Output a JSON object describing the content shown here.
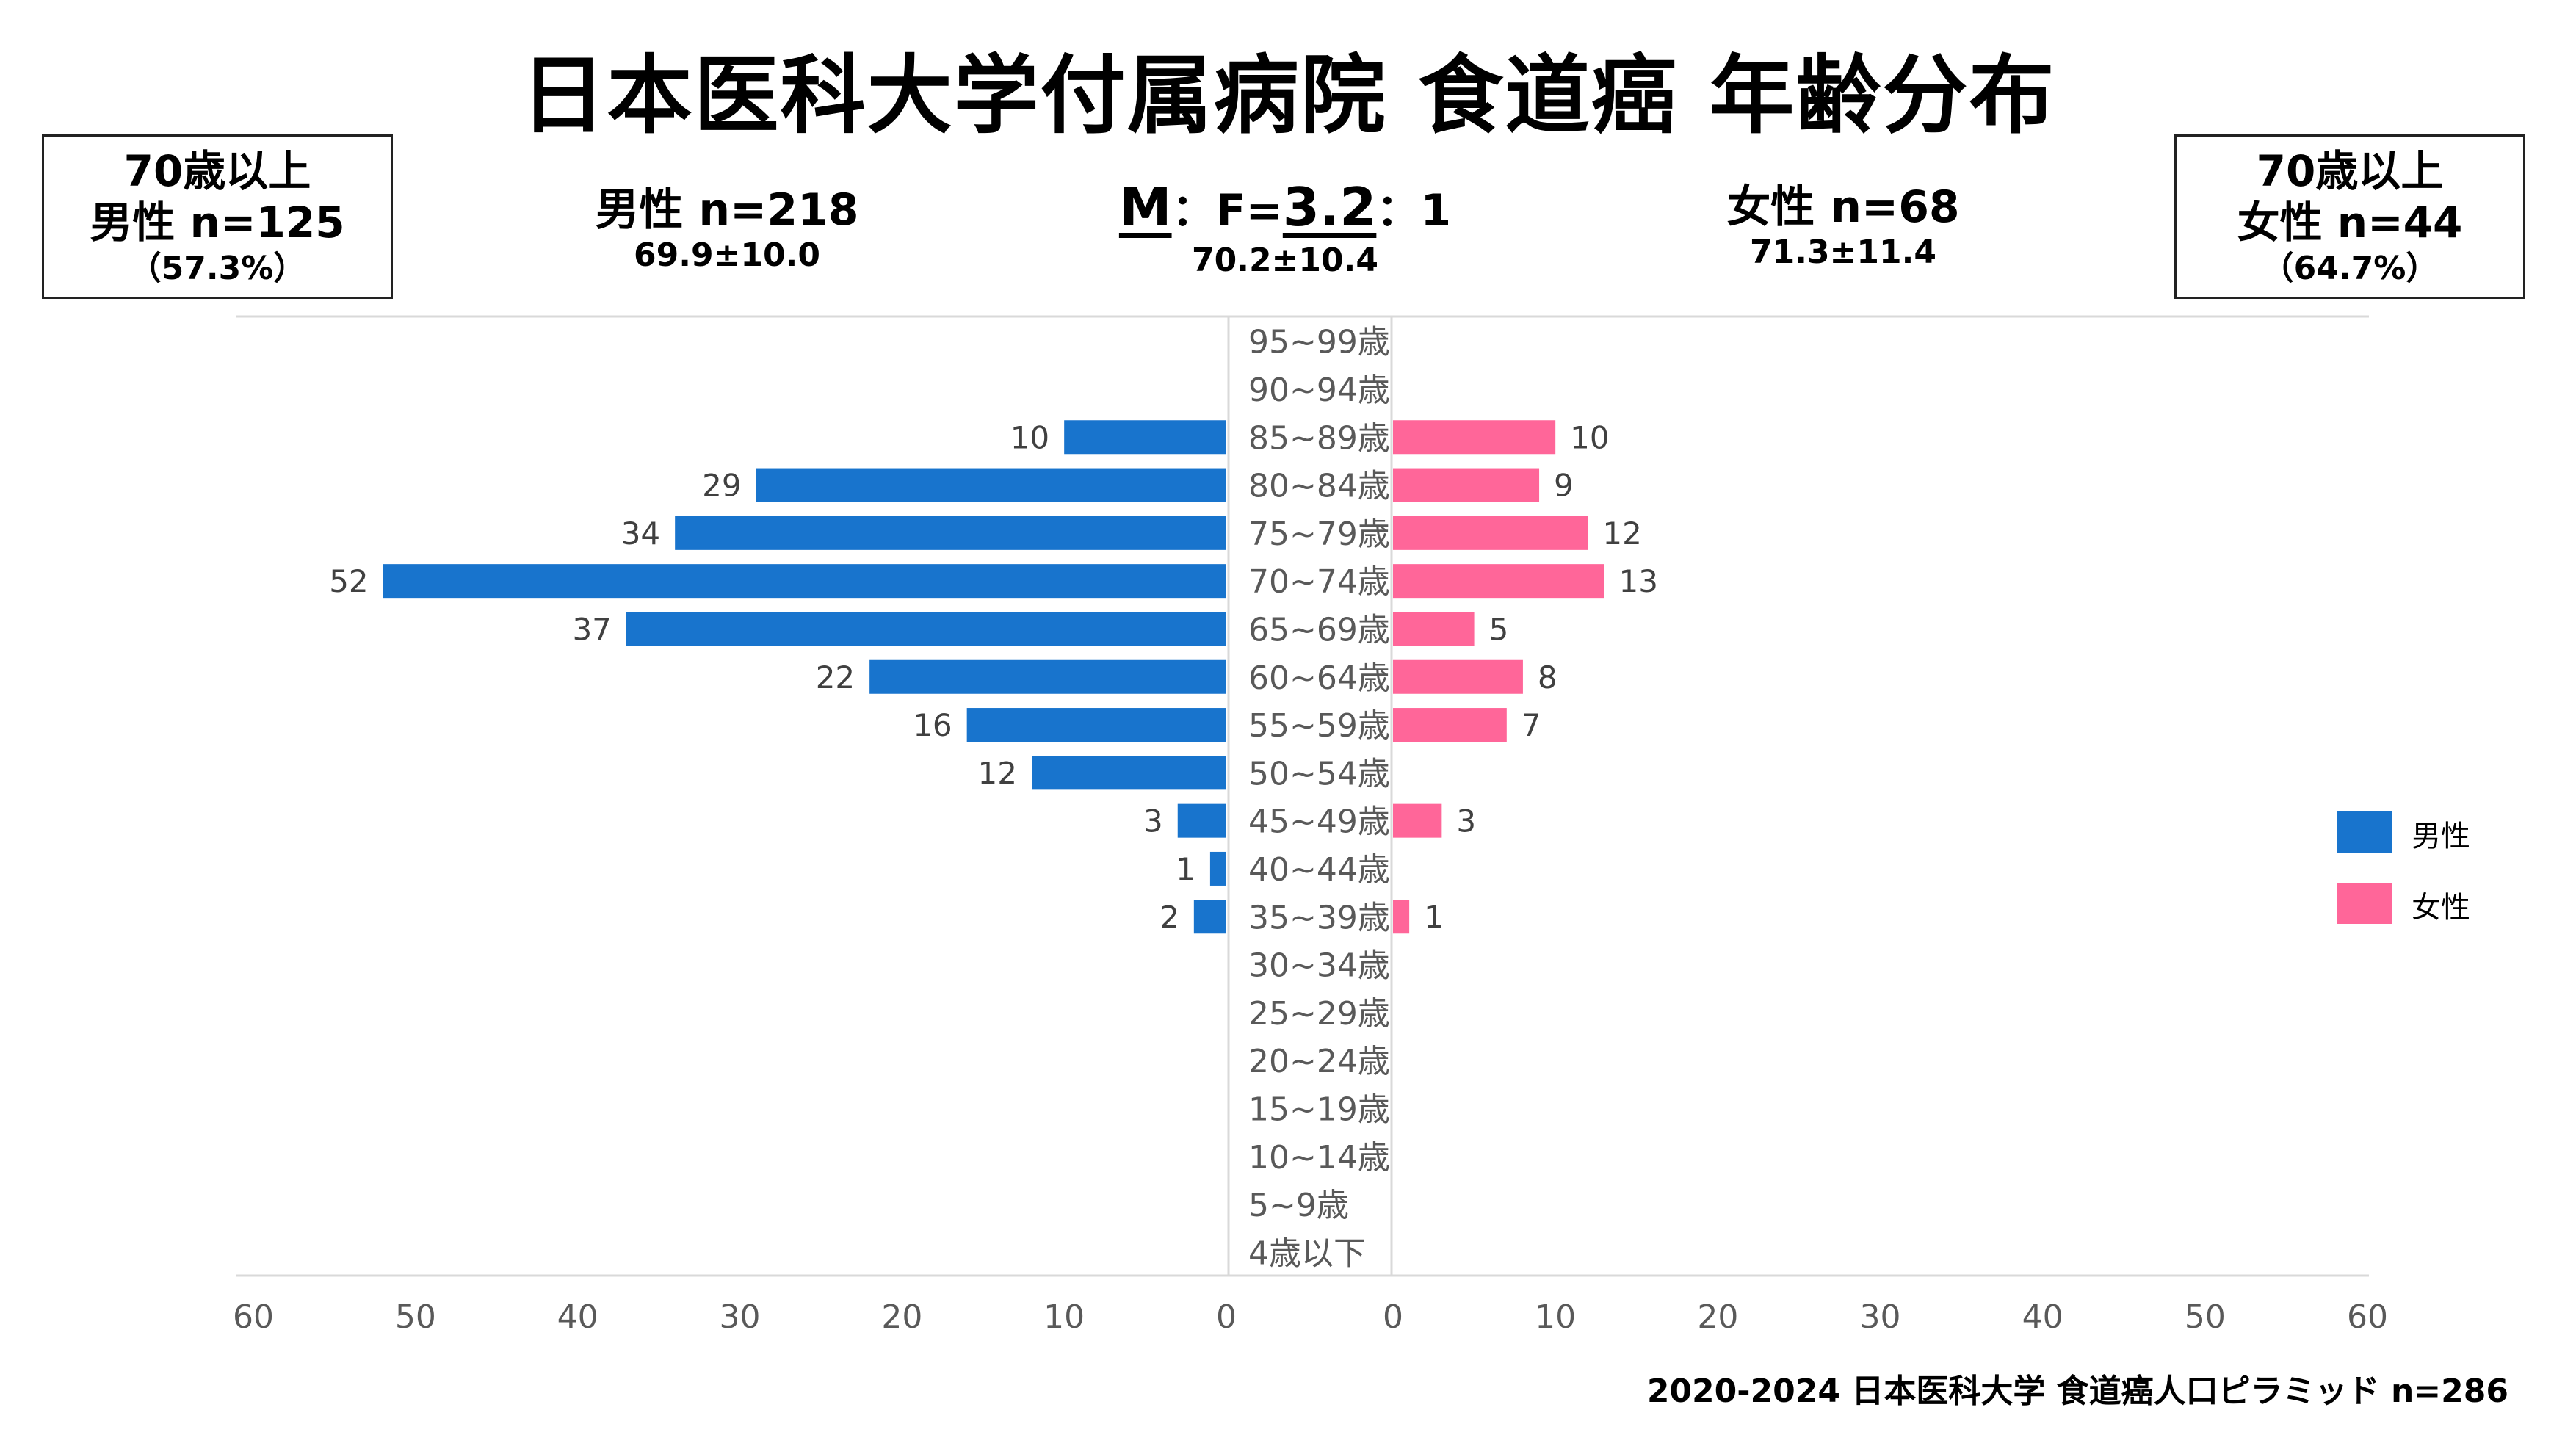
{
  "title": "日本医科大学付属病院 食道癌 年齢分布",
  "box_left": {
    "line1": "70歳以上",
    "line2": "男性 n=125",
    "line3": "（57.3%）"
  },
  "box_right": {
    "line1": "70歳以上",
    "line2": "女性 n=44",
    "line3": "（64.7%）"
  },
  "stat_male": {
    "main": "男性 n=218",
    "sub": "69.9±10.0"
  },
  "stat_ratio": {
    "m": "M",
    "mid": "：F=",
    "value": "3.2",
    "end": "：1",
    "sub": "70.2±10.4"
  },
  "stat_female": {
    "main": "女性 n=68",
    "sub": "71.3±11.4"
  },
  "footer": "2020-2024 日本医科大学 食道癌人口ピラミッド n=286",
  "colors": {
    "male": "#1874CD",
    "female": "#FF6699"
  },
  "chart_data": {
    "type": "bar",
    "orientation": "horizontal-pyramid",
    "categories": [
      "95~99歳",
      "90~94歳",
      "85~89歳",
      "80~84歳",
      "75~79歳",
      "70~74歳",
      "65~69歳",
      "60~64歳",
      "55~59歳",
      "50~54歳",
      "45~49歳",
      "40~44歳",
      "35~39歳",
      "30~34歳",
      "25~29歳",
      "20~24歳",
      "15~19歳",
      "10~14歳",
      "5~9歳",
      "4歳以下"
    ],
    "series": [
      {
        "name": "男性",
        "values": [
          0,
          0,
          10,
          29,
          34,
          52,
          37,
          22,
          16,
          12,
          3,
          1,
          2,
          0,
          0,
          0,
          0,
          0,
          0,
          0
        ]
      },
      {
        "name": "女性",
        "values": [
          0,
          0,
          10,
          9,
          12,
          13,
          5,
          8,
          7,
          0,
          3,
          0,
          1,
          0,
          0,
          0,
          0,
          0,
          0,
          0
        ]
      }
    ],
    "xlim": [
      0,
      60
    ],
    "xticks_left": [
      "60",
      "50",
      "40",
      "30",
      "20",
      "10",
      "0"
    ],
    "xticks_right": [
      "0",
      "10",
      "20",
      "30",
      "40",
      "50",
      "60"
    ],
    "legend": "right"
  }
}
